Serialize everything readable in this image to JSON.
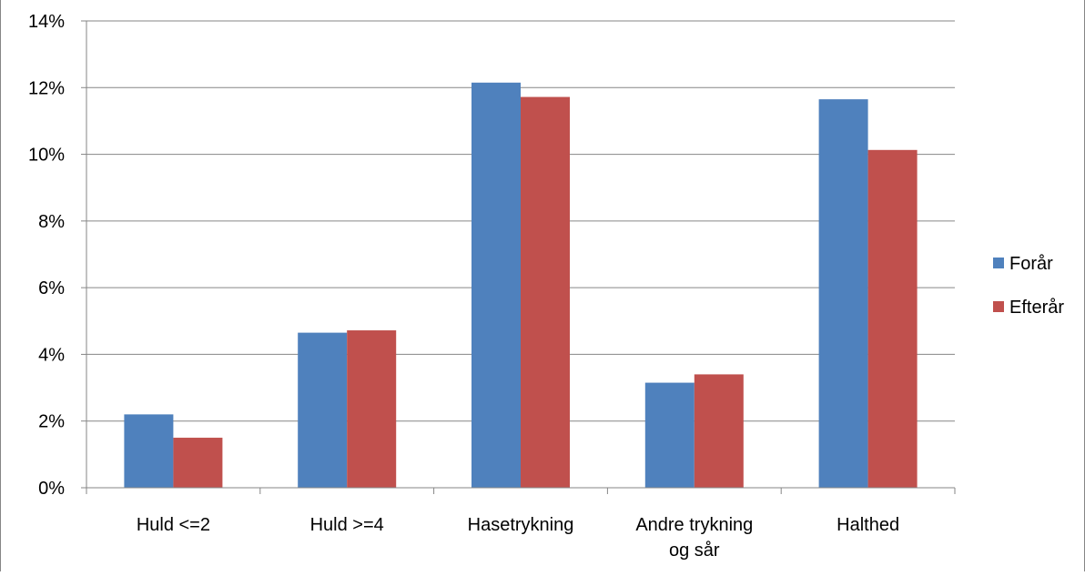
{
  "chart_data": {
    "type": "bar",
    "categories": [
      "Huld <=2",
      "Huld >=4",
      "Hasetrykning",
      "Andre trykning og sår",
      "Halthed"
    ],
    "category_lines": [
      [
        "Huld <=2"
      ],
      [
        "Huld >=4"
      ],
      [
        "Hasetrykning"
      ],
      [
        "Andre trykning",
        "og sår"
      ],
      [
        "Halthed"
      ]
    ],
    "series": [
      {
        "name": "Forår",
        "color": "#4f81bd",
        "values": [
          2.2,
          4.65,
          12.15,
          3.15,
          11.65
        ]
      },
      {
        "name": "Efterår",
        "color": "#c0504d",
        "values": [
          1.5,
          4.72,
          11.72,
          3.4,
          10.13
        ]
      }
    ],
    "y_unit": "%",
    "ylim": [
      0,
      14
    ],
    "y_ticks": [
      0,
      2,
      4,
      6,
      8,
      10,
      12,
      14
    ],
    "y_tick_labels": [
      "0%",
      "2%",
      "4%",
      "6%",
      "8%",
      "10%",
      "12%",
      "14%"
    ],
    "grid": true,
    "legend_position": "right",
    "title": "",
    "xlabel": "",
    "ylabel": ""
  }
}
